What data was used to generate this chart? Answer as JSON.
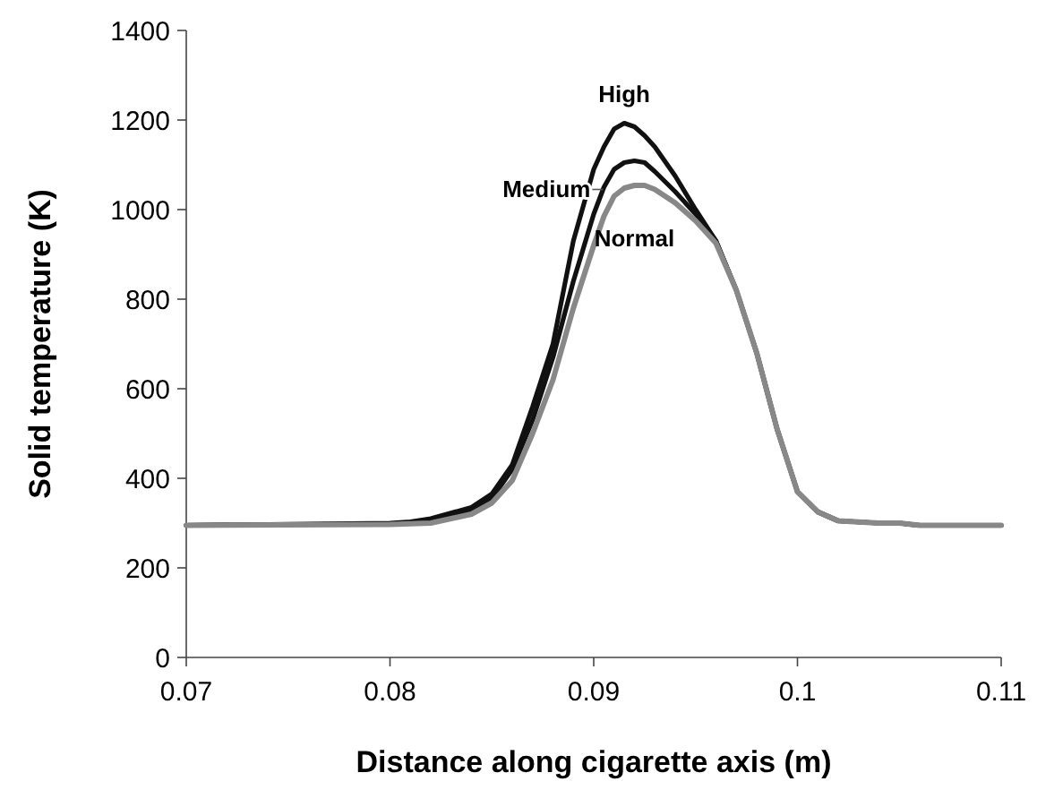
{
  "chart_data": {
    "type": "line",
    "xlabel": "Distance along cigarette axis (m)",
    "ylabel": "Solid temperature (K)",
    "xlim": [
      0.07,
      0.11
    ],
    "xticks": [
      0.07,
      0.08,
      0.09,
      0.1,
      0.11
    ],
    "ylim": [
      0,
      1400
    ],
    "yticks": [
      0,
      200,
      400,
      600,
      800,
      1000,
      1200,
      1400
    ],
    "grid": false,
    "legend": false,
    "marker": "none",
    "line_style": "solid",
    "series": [
      {
        "name": "High",
        "color": "#111111",
        "x": [
          0.07,
          0.08,
          0.081,
          0.082,
          0.084,
          0.085,
          0.086,
          0.087,
          0.088,
          0.089,
          0.09,
          0.0905,
          0.091,
          0.0915,
          0.092,
          0.0925,
          0.093,
          0.094,
          0.095,
          0.096,
          0.097,
          0.098,
          0.099,
          0.1,
          0.101,
          0.102,
          0.104,
          0.105,
          0.106,
          0.11
        ],
        "values": [
          295,
          300,
          303,
          310,
          335,
          365,
          430,
          560,
          700,
          930,
          1090,
          1140,
          1180,
          1193,
          1185,
          1165,
          1140,
          1075,
          1000,
          930,
          820,
          680,
          510,
          370,
          325,
          305,
          300,
          300,
          295,
          295
        ]
      },
      {
        "name": "Medium",
        "color": "#111111",
        "x": [
          0.07,
          0.08,
          0.082,
          0.084,
          0.085,
          0.086,
          0.087,
          0.088,
          0.089,
          0.09,
          0.0905,
          0.091,
          0.0915,
          0.092,
          0.0925,
          0.093,
          0.094,
          0.095,
          0.096,
          0.097,
          0.098,
          0.099,
          0.1,
          0.101,
          0.102,
          0.104,
          0.105,
          0.106,
          0.11
        ],
        "values": [
          295,
          298,
          305,
          328,
          355,
          420,
          530,
          670,
          840,
          990,
          1050,
          1090,
          1105,
          1109,
          1105,
          1085,
          1040,
          990,
          930,
          820,
          680,
          510,
          370,
          325,
          305,
          300,
          300,
          295,
          295
        ]
      },
      {
        "name": "Normal",
        "color": "#888888",
        "x": [
          0.07,
          0.08,
          0.082,
          0.084,
          0.085,
          0.086,
          0.087,
          0.088,
          0.089,
          0.09,
          0.0905,
          0.091,
          0.0915,
          0.092,
          0.0925,
          0.093,
          0.094,
          0.095,
          0.096,
          0.097,
          0.098,
          0.099,
          0.1,
          0.101,
          0.102,
          0.104,
          0.105,
          0.106,
          0.11
        ],
        "values": [
          295,
          297,
          300,
          320,
          345,
          395,
          500,
          620,
          780,
          920,
          985,
          1030,
          1048,
          1054,
          1054,
          1045,
          1015,
          975,
          925,
          820,
          680,
          510,
          370,
          325,
          305,
          300,
          300,
          295,
          295
        ]
      }
    ]
  }
}
